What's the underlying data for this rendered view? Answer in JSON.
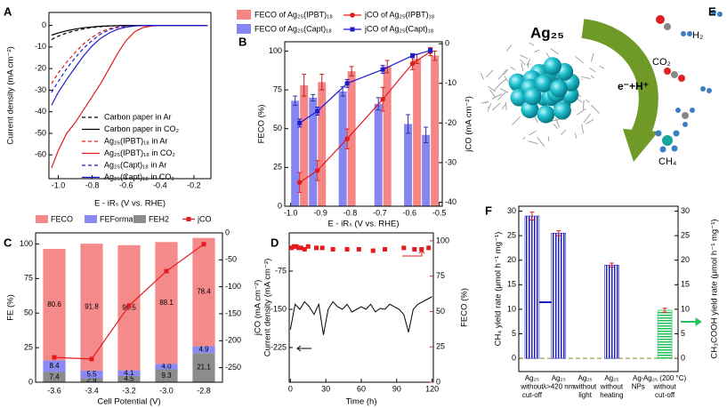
{
  "chart_data": [
    {
      "panel": "A",
      "type": "line",
      "xlabel": "E - iRₛ (V vs. RHE)",
      "ylabel": "Current density (mA cm⁻²)",
      "x": [
        -1.04,
        -1.0,
        -0.95,
        -0.9,
        -0.85,
        -0.8,
        -0.75,
        -0.7,
        -0.65,
        -0.6,
        -0.55,
        -0.5,
        -0.45,
        -0.4,
        -0.3,
        -0.2,
        -0.12
      ],
      "xlim": [
        -1.055,
        -0.1
      ],
      "xticks": [
        {
          "value": -1,
          "label": "-1.0"
        },
        -0.8,
        -0.6,
        -0.4,
        -0.2
      ],
      "ylim": [
        -71,
        6
      ],
      "yticks": [
        0,
        -10,
        -20,
        -30,
        -40,
        -50,
        -60
      ],
      "legend": "lower right",
      "series": [
        {
          "name": "Carbon paper in Ar",
          "color": "#000000",
          "linestyle": "dashed",
          "values": [
            -6.5,
            -5,
            -3.5,
            -2.5,
            -1.6,
            -1,
            -0.6,
            -0.3,
            -0.1,
            0,
            0,
            0,
            0,
            0,
            0,
            0,
            0
          ]
        },
        {
          "name": "Carbon paper in CO₂",
          "color": "#000000",
          "linestyle": "solid",
          "values": [
            -4.5,
            -3.5,
            -2.5,
            -1.7,
            -1.1,
            -0.7,
            -0.4,
            -0.2,
            -0.1,
            0,
            0,
            0,
            0,
            0,
            0,
            0,
            0
          ]
        },
        {
          "name": "Ag₂₅(IPBT)₁₈ in Ar",
          "color": "#e41a1c",
          "linestyle": "dashed",
          "values": [
            -27,
            -22,
            -17,
            -12.5,
            -8.5,
            -5.5,
            -3,
            -1.5,
            -0.7,
            -0.3,
            -0.1,
            0,
            0,
            0,
            0,
            0,
            0
          ]
        },
        {
          "name": "Ag₂₅(IPBT)₁₈ in CO₂",
          "color": "#e41a1c",
          "linestyle": "solid",
          "values": [
            -66,
            -58,
            -50,
            -45,
            -39,
            -33,
            -27,
            -20,
            -13,
            -7,
            -3,
            -1,
            -0.3,
            0,
            0,
            0,
            0
          ]
        },
        {
          "name": "Ag₂₅(Capt)₁₈ in Ar",
          "color": "#1c1ccf",
          "linestyle": "dashed",
          "values": [
            -31,
            -26,
            -20,
            -15,
            -10.5,
            -7,
            -4,
            -2,
            -0.9,
            -0.4,
            -0.1,
            0,
            0,
            0,
            0,
            0,
            0
          ]
        },
        {
          "name": "Ag₂₅(Capt)₁₈ in CO₂",
          "color": "#1c1ccf",
          "linestyle": "solid",
          "values": [
            -37,
            -31,
            -25,
            -19.5,
            -14,
            -9.5,
            -6,
            -3.5,
            -1.8,
            -0.8,
            -0.3,
            0,
            0,
            0,
            0,
            0,
            0
          ]
        }
      ]
    },
    {
      "panel": "B",
      "type": "bar+line",
      "xlabel": "E - iRₛ (V vs. RHE)",
      "ylabel": "FECO (%)",
      "y2label": "jCO (mA cm⁻²)",
      "x": [
        -0.97,
        -0.91,
        -0.81,
        -0.69,
        -0.59,
        -0.53
      ],
      "xlim": [
        -1.02,
        -0.49
      ],
      "xticks": [
        {
          "value": -1,
          "label": "-1.0"
        },
        -0.9,
        -0.8,
        -0.7,
        -0.6,
        -0.5
      ],
      "ylim": [
        0,
        106
      ],
      "yticks": [
        0,
        25,
        50,
        75,
        100
      ],
      "y2lim": [
        -41,
        0.5
      ],
      "y2ticks": [
        0,
        -10,
        -20,
        -30,
        -40
      ],
      "series": [
        {
          "name": "FECO of Ag₂₅(IPBT)₁₈",
          "type": "bar",
          "color": "#f48686",
          "values": [
            78,
            80,
            87,
            90,
            95,
            97
          ],
          "errors": [
            7,
            5,
            3,
            4,
            3,
            3
          ]
        },
        {
          "name": "FECO of Ag₂₅(Capt)₁₈",
          "type": "bar",
          "color": "#8686f0",
          "values": [
            68,
            70,
            74,
            66,
            53,
            46
          ],
          "errors": [
            3,
            2,
            3,
            4,
            6,
            5
          ]
        },
        {
          "name": "jCO of Ag₂₅(IPBT)₁₈",
          "type": "line",
          "axis": "y2",
          "color": "#e41a1c",
          "values": [
            -35,
            -32,
            -24,
            -14,
            -5,
            -2
          ],
          "errors": [
            2.5,
            2.5,
            2.5,
            3,
            1.5,
            1
          ]
        },
        {
          "name": "jCO of Ag₂₅(Capt)₁₈",
          "type": "line",
          "axis": "y2",
          "color": "#1c1ccf",
          "values": [
            -20,
            -17,
            -10,
            -6.5,
            -3,
            -1.7
          ],
          "errors": [
            1,
            1,
            1,
            1,
            0.5,
            0.5
          ]
        }
      ]
    },
    {
      "panel": "C",
      "type": "stacked-bar+line",
      "xlabel": "Cell Potential (V)",
      "ylabel": "FE (%)",
      "y2label": "jCO (mA cm⁻²)",
      "categories": [
        "-3.6",
        "-3.4",
        "-3.2",
        "-3.0",
        "-2.8"
      ],
      "ylim": [
        0,
        108
      ],
      "yticks": [
        0,
        25,
        50,
        75,
        100
      ],
      "y2lim": [
        -277,
        0
      ],
      "y2ticks": [
        0,
        -50,
        -100,
        -150,
        -200,
        -250
      ],
      "series": [
        {
          "name": "FECO",
          "type": "bar",
          "color": "#f58a8a",
          "values": [
            80.6,
            91.8,
            90.5,
            88.1,
            78.4
          ]
        },
        {
          "name": "FEFormate",
          "type": "bar",
          "color": "#8a8af2",
          "values": [
            8.4,
            5.5,
            4.1,
            4,
            4.9
          ],
          "value_labels": [
            "8.4",
            "5.5",
            "4.1",
            "4.0",
            "4.9"
          ]
        },
        {
          "name": "FEH2",
          "type": "bar",
          "color": "#8c8c8c",
          "values": [
            7.4,
            2.9,
            4.5,
            9.3,
            21.1
          ]
        },
        {
          "name": "jCO",
          "type": "line",
          "axis": "y2",
          "color": "#e41a1c",
          "values": [
            -231,
            -234,
            -135,
            -71,
            -21
          ]
        }
      ]
    },
    {
      "panel": "D",
      "type": "line+scatter",
      "xlabel": "Time (h)",
      "ylabel": "Current density (mA cm⁻²)",
      "y2label": "FECO (%)",
      "xlim": [
        -1,
        121
      ],
      "xticks": [
        0,
        30,
        60,
        90,
        120
      ],
      "ylim": [
        -293,
        0
      ],
      "yticks": [
        -75,
        -150,
        -225
      ],
      "y2lim": [
        0,
        105.6
      ],
      "y2ticks": [
        0,
        25,
        50,
        75,
        100
      ],
      "series": [
        {
          "type": "line",
          "color": "#000000",
          "x": [
            0,
            4,
            8,
            12,
            16,
            20,
            24,
            28,
            32,
            36,
            40,
            44,
            48,
            52,
            56,
            60,
            64,
            68,
            72,
            76,
            80,
            84,
            88,
            92,
            96,
            100,
            104,
            108,
            112,
            116,
            120
          ],
          "values": [
            -190,
            -140,
            -150,
            -135,
            -145,
            -160,
            -140,
            -200,
            -150,
            -135,
            -145,
            -150,
            -140,
            -155,
            -150,
            -145,
            -150,
            -140,
            -155,
            -148,
            -150,
            -140,
            -145,
            -150,
            -160,
            -195,
            -150,
            -140,
            -135,
            -130,
            -125
          ]
        },
        {
          "type": "scatter",
          "axis": "y2",
          "color": "#e41a1c",
          "x": [
            1,
            3,
            5,
            7,
            9,
            12,
            15,
            22,
            27,
            36,
            48,
            58,
            70,
            80,
            96,
            105,
            111,
            117
          ],
          "values": [
            95,
            96,
            96,
            95,
            95,
            94,
            96,
            95,
            95,
            94,
            94,
            94,
            93,
            94,
            95,
            94,
            94,
            95
          ]
        }
      ]
    },
    {
      "panel": "E",
      "type": "image",
      "title": "Ag₂₅",
      "labels": [
        "H₂",
        "CO₂",
        "e⁻+H⁺",
        "CH₄"
      ]
    },
    {
      "panel": "F",
      "type": "bar",
      "ylabel": "CH₄ yield rate (μmol h⁻¹ mg⁻¹)",
      "y2label": "CH₃COOH yield rate (μmol h⁻¹ mg⁻¹)",
      "categories": [
        [
          "Ag₂₅",
          "without",
          "cut-off"
        ],
        [
          "Ag₂₅",
          "λ>420 nm"
        ],
        [
          "Ag₂₅",
          "without",
          "light"
        ],
        [
          "Ag₂₅",
          "without",
          "heating"
        ],
        [
          "Ag-",
          "NPs"
        ],
        [
          "Ag₂₅ (200 °C)",
          "without",
          "cut-off"
        ]
      ],
      "ylim": [
        -2.7,
        31
      ],
      "yticks": [
        0,
        5,
        10,
        15,
        20,
        25,
        30
      ],
      "y2lim": [
        -2.7,
        31
      ],
      "y2ticks": [
        0,
        5,
        10,
        15,
        20,
        25,
        30
      ],
      "series": [
        {
          "color": "#2020c0",
          "pattern": "vertical",
          "values": [
            29,
            25.5,
            0,
            19,
            0,
            null
          ],
          "errors": [
            0.8,
            0.5,
            0,
            0.4,
            0,
            null
          ]
        },
        {
          "color": "#22c05a",
          "pattern": "horizontal",
          "axis": "y2",
          "values": [
            null,
            null,
            null,
            null,
            null,
            9.8
          ],
          "errors": [
            null,
            null,
            null,
            null,
            null,
            0.4
          ]
        }
      ]
    }
  ]
}
